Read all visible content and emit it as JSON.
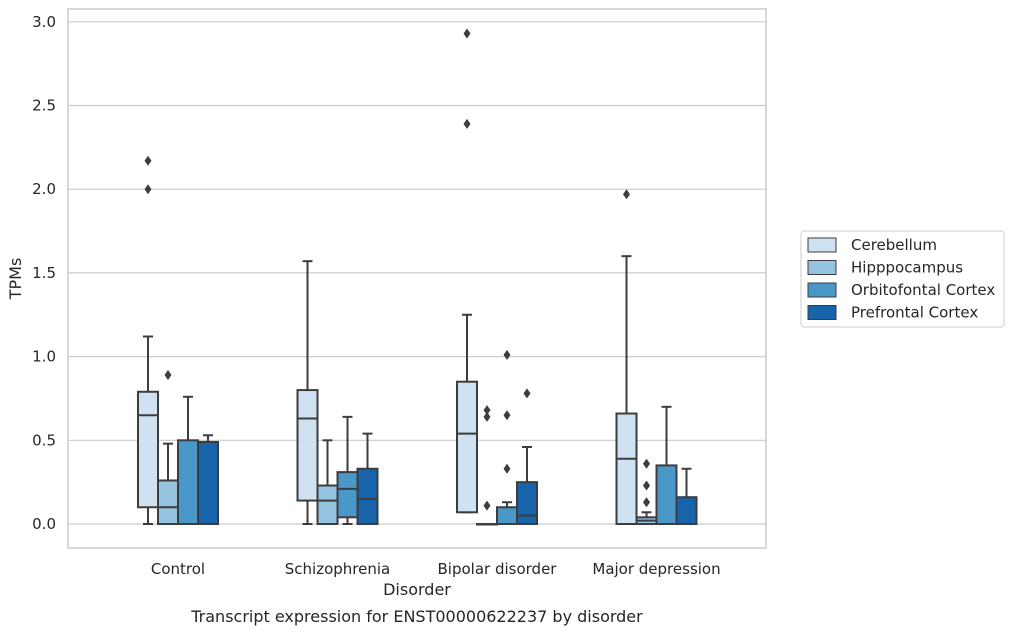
{
  "caption": "Transcript expression for ENST00000622237 by disorder",
  "colors": {
    "Cerebellum": "#d0e1f2",
    "Hipppocampus": "#94c4df",
    "Orbitofontal Cortex": "#4a98c9",
    "Prefrontal Cortex": "#1764ab",
    "box_edge": "#3d3d3d",
    "grid": "#cccccc",
    "frame": "#cccccc"
  },
  "chart_data": {
    "type": "box",
    "title": "",
    "xlabel": "Disorder",
    "ylabel": "TPMs",
    "ylim": [
      -0.14,
      3.07
    ],
    "yticks": [
      0.0,
      0.5,
      1.0,
      1.5,
      2.0,
      2.5,
      3.0
    ],
    "ytick_labels": [
      "0.0",
      "0.5",
      "1.0",
      "1.5",
      "2.0",
      "2.5",
      "3.0"
    ],
    "grid": true,
    "legend_position": "right",
    "categories": [
      "Control",
      "Schizophrenia",
      "Bipolar disorder",
      "Major depression"
    ],
    "series": [
      {
        "name": "Cerebellum",
        "boxes": [
          {
            "whislo": 0.0,
            "q1": 0.1,
            "med": 0.65,
            "q3": 0.79,
            "whishi": 1.12,
            "fliers": [
              2.0,
              2.17
            ]
          },
          {
            "whislo": 0.0,
            "q1": 0.14,
            "med": 0.63,
            "q3": 0.8,
            "whishi": 1.57,
            "fliers": []
          },
          {
            "whislo": 0.07,
            "q1": 0.07,
            "med": 0.54,
            "q3": 0.85,
            "whishi": 1.25,
            "fliers": [
              2.39,
              2.93
            ]
          },
          {
            "whislo": 0.0,
            "q1": 0.0,
            "med": 0.39,
            "q3": 0.66,
            "whishi": 1.6,
            "fliers": [
              1.97
            ]
          }
        ]
      },
      {
        "name": "Hipppocampus",
        "boxes": [
          {
            "whislo": 0.0,
            "q1": 0.0,
            "med": 0.1,
            "q3": 0.26,
            "whishi": 0.48,
            "fliers": [
              0.89
            ]
          },
          {
            "whislo": 0.0,
            "q1": 0.0,
            "med": 0.14,
            "q3": 0.23,
            "whishi": 0.5,
            "fliers": []
          },
          {
            "whislo": 0.0,
            "q1": 0.0,
            "med": 0.0,
            "q3": 0.0,
            "whishi": 0.0,
            "fliers": [
              0.11,
              0.64,
              0.68
            ]
          },
          {
            "whislo": 0.0,
            "q1": 0.0,
            "med": 0.02,
            "q3": 0.04,
            "whishi": 0.07,
            "fliers": [
              0.13,
              0.23,
              0.36
            ]
          }
        ]
      },
      {
        "name": "Orbitofontal Cortex",
        "boxes": [
          {
            "whislo": 0.0,
            "q1": 0.0,
            "med": 0.0,
            "q3": 0.5,
            "whishi": 0.76,
            "fliers": []
          },
          {
            "whislo": 0.0,
            "q1": 0.04,
            "med": 0.21,
            "q3": 0.31,
            "whishi": 0.64,
            "fliers": []
          },
          {
            "whislo": 0.0,
            "q1": 0.0,
            "med": 0.0,
            "q3": 0.1,
            "whishi": 0.13,
            "fliers": [
              0.33,
              0.65,
              1.01
            ]
          },
          {
            "whislo": 0.0,
            "q1": 0.0,
            "med": 0.0,
            "q3": 0.35,
            "whishi": 0.7,
            "fliers": []
          }
        ]
      },
      {
        "name": "Prefrontal Cortex",
        "boxes": [
          {
            "whislo": 0.0,
            "q1": 0.0,
            "med": 0.0,
            "q3": 0.49,
            "whishi": 0.53,
            "fliers": []
          },
          {
            "whislo": 0.0,
            "q1": 0.0,
            "med": 0.15,
            "q3": 0.33,
            "whishi": 0.54,
            "fliers": []
          },
          {
            "whislo": 0.0,
            "q1": 0.0,
            "med": 0.05,
            "q3": 0.25,
            "whishi": 0.46,
            "fliers": [
              0.78
            ]
          },
          {
            "whislo": 0.0,
            "q1": 0.0,
            "med": 0.0,
            "q3": 0.16,
            "whishi": 0.33,
            "fliers": []
          }
        ]
      }
    ]
  }
}
